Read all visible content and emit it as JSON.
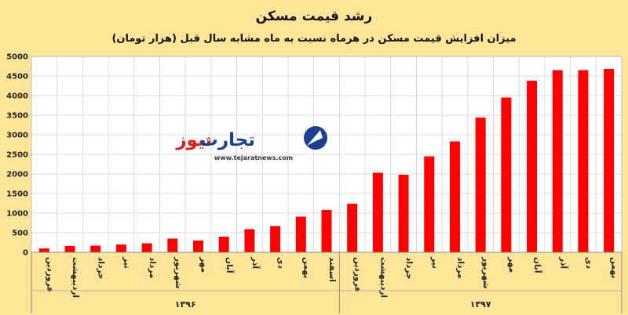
{
  "chart_data": {
    "type": "bar",
    "title": "رشد قیمت مسکن",
    "subtitle": "میزان افزایش قیمت مسکن در هرماه نسبت به ماه مشابه سال قبل (هزار تومان)",
    "xlabel": "",
    "ylabel": "",
    "ylim": [
      0,
      5000
    ],
    "yticks": [
      0,
      500,
      1000,
      1500,
      2000,
      2500,
      3000,
      3500,
      4000,
      4500,
      5000
    ],
    "grid": true,
    "categories": [
      "فروردین",
      "اردیبهشت",
      "خرداد",
      "تیر",
      "مرداد",
      "شهریور",
      "مهر",
      "آبان",
      "آذر",
      "دی",
      "بهمن",
      "اسفند",
      "فروردین",
      "اردیبهشت",
      "خرداد",
      "تیر",
      "مرداد",
      "شهریور",
      "مهر",
      "آبان",
      "آذر",
      "دی",
      "بهمن"
    ],
    "values": [
      100,
      160,
      170,
      200,
      230,
      350,
      300,
      400,
      590,
      670,
      910,
      1080,
      1240,
      2030,
      1980,
      2450,
      2830,
      3440,
      3950,
      4380,
      4650,
      4650,
      4680
    ],
    "groups": [
      {
        "label": "۱۳۹۶",
        "start": 0,
        "end": 11
      },
      {
        "label": "۱۳۹۷",
        "start": 12,
        "end": 22
      }
    ],
    "bar_color": "#ff0000"
  },
  "watermark": {
    "brand_prefix": "تجارت",
    "brand_suffix": "نیوز",
    "url": "www.tejaratnews.com"
  }
}
